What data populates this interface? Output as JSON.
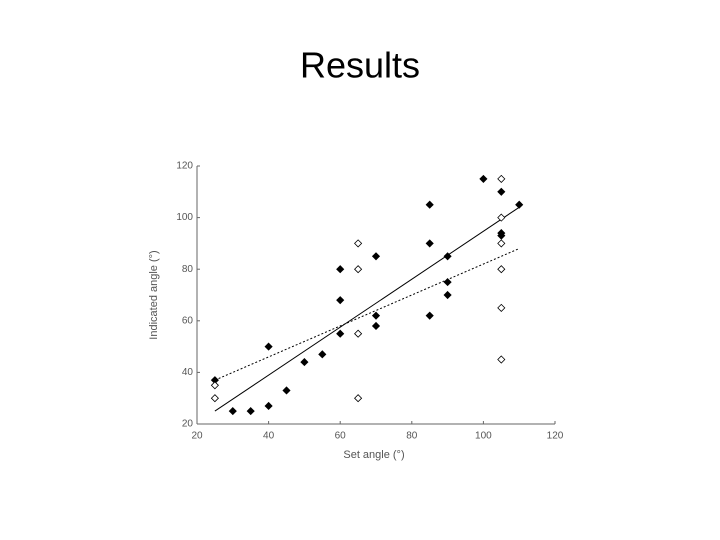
{
  "chart_data": {
    "type": "scatter",
    "title": "Results",
    "x_label": "Set angle (°)",
    "y_label": "Indicated angle (°)",
    "xlim": [
      20,
      120
    ],
    "ylim": [
      20,
      120
    ],
    "xticks": [
      20,
      40,
      60,
      80,
      100,
      120
    ],
    "yticks": [
      20,
      40,
      60,
      80,
      100,
      120
    ],
    "grid": false,
    "series": [
      {
        "color": "#000000",
        "filled": true,
        "x": [
          25,
          30,
          35,
          40,
          40,
          45,
          50,
          55,
          60,
          60,
          60,
          70,
          70,
          70,
          85,
          85,
          85,
          90,
          90,
          90,
          100,
          105,
          105,
          105,
          110
        ],
        "values": [
          37,
          25,
          25,
          50,
          27,
          33,
          44,
          47,
          80,
          68,
          55,
          85,
          62,
          58,
          105,
          90,
          62,
          85,
          75,
          70,
          115,
          110,
          94,
          93,
          105
        ]
      },
      {
        "color": "#000000",
        "filled": false,
        "x": [
          25,
          25,
          65,
          65,
          65,
          65,
          105,
          105,
          105,
          105,
          105,
          105
        ],
        "values": [
          35,
          30,
          90,
          80,
          55,
          30,
          115,
          100,
          90,
          80,
          65,
          45
        ]
      }
    ],
    "trend_lines": [
      {
        "color": "#000000",
        "dash": false,
        "x": [
          25,
          110
        ],
        "values": [
          25,
          104
        ]
      },
      {
        "color": "#000000",
        "dash": true,
        "x": [
          25,
          110
        ],
        "values": [
          37,
          88
        ]
      }
    ]
  }
}
